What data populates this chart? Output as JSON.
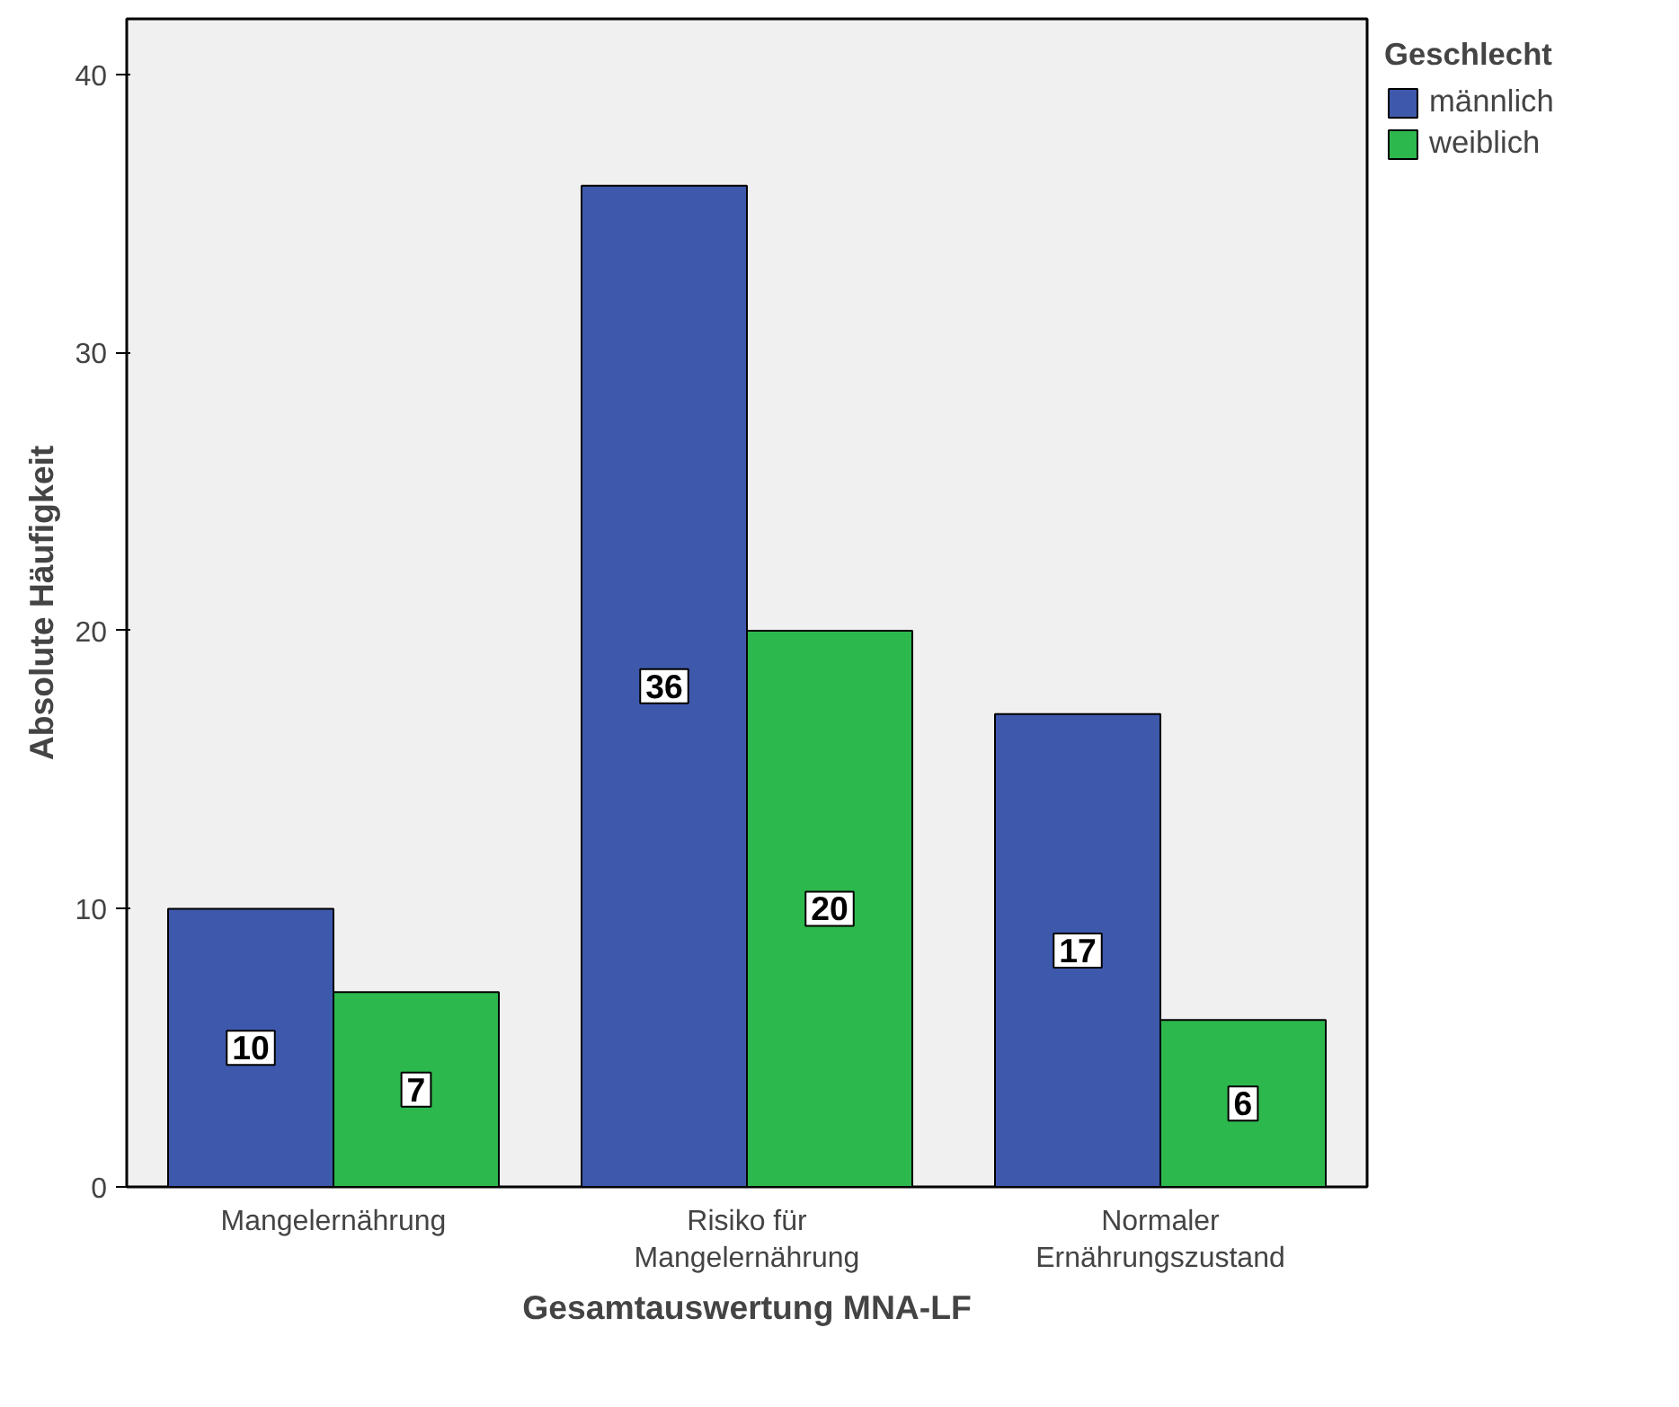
{
  "chart_data": {
    "type": "bar",
    "xlabel": "Gesamtauswertung MNA-LF",
    "ylabel": "Absolute Häufigkeit",
    "legend_title": "Geschlecht",
    "categories": [
      "Mangelernährung",
      "Risiko für\nMangelernährung",
      "Normaler\nErnährungszustand"
    ],
    "series": [
      {
        "name": "männlich",
        "color": "#3e58ac",
        "values": [
          10,
          36,
          17
        ]
      },
      {
        "name": "weiblich",
        "color": "#2db84d",
        "values": [
          7,
          20,
          6
        ]
      }
    ],
    "ylim": [
      0,
      42
    ],
    "yticks": [
      0,
      10,
      20,
      30,
      40
    ],
    "grid": false,
    "legend": "top right",
    "data_labels": true
  }
}
